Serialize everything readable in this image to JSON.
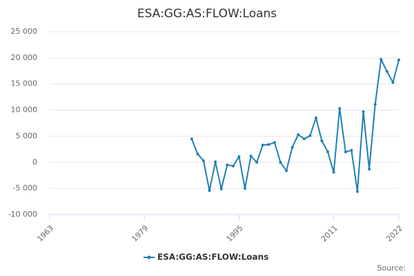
{
  "chart_data": {
    "type": "line",
    "title": "ESA:GG:AS:FLOW:Loans",
    "source": "Source:",
    "x": [
      1987,
      1988,
      1989,
      1990,
      1991,
      1992,
      1993,
      1994,
      1995,
      1996,
      1997,
      1998,
      1999,
      2000,
      2001,
      2002,
      2003,
      2004,
      2005,
      2006,
      2007,
      2008,
      2009,
      2010,
      2011,
      2012,
      2013,
      2014,
      2015,
      2016,
      2017,
      2018,
      2019,
      2020,
      2021,
      2022
    ],
    "series": [
      {
        "name": "ESA:GG:AS:FLOW:Loans",
        "color": "#1f7fb4",
        "values": [
          4500,
          1600,
          300,
          -5400,
          100,
          -5100,
          -500,
          -700,
          1100,
          -5000,
          1200,
          0,
          3300,
          3400,
          3800,
          0,
          -1600,
          2900,
          5300,
          4500,
          5100,
          8500,
          4100,
          2000,
          -1900,
          10300,
          2000,
          2300,
          -5600,
          9700,
          -1300,
          11100,
          19700,
          17400,
          15300,
          19600
        ]
      }
    ],
    "xlim": [
      1963,
      2022
    ],
    "xticks": [
      1963,
      1979,
      1995,
      2011,
      2022
    ],
    "ylim": [
      -10000,
      25000
    ],
    "yticks": [
      {
        "value": -10000,
        "label": "-10 000"
      },
      {
        "value": -5000,
        "label": "-5 000"
      },
      0,
      {
        "value": 5000,
        "label": "5 000"
      },
      {
        "value": 10000,
        "label": "10 000"
      },
      {
        "value": 15000,
        "label": "15 000"
      },
      {
        "value": 20000,
        "label": "20 000"
      },
      {
        "value": 25000,
        "label": "25 000"
      }
    ],
    "grid": true
  }
}
